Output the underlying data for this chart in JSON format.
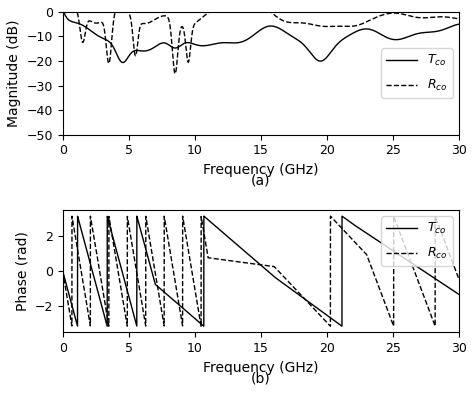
{
  "title_a": "(a)",
  "title_b": "(b)",
  "xlabel": "Frequency (GHz)",
  "ylabel_a": "Magnitude (dB)",
  "ylabel_b": "Phase (rad)",
  "xlim": [
    0,
    30
  ],
  "ylim_a": [
    -50,
    0
  ],
  "ylim_b": [
    -3.5,
    3.5
  ],
  "yticks_a": [
    0,
    -10,
    -20,
    -30,
    -40,
    -50
  ],
  "yticks_b": [
    -2,
    0,
    2
  ],
  "xticks": [
    0,
    5,
    10,
    15,
    20,
    25,
    30
  ],
  "legend_Tco": "$T_{co}$",
  "legend_Rco": "$R_{co}$",
  "line_color": "black",
  "bg_color": "white",
  "fontsize": 10,
  "label_fontsize": 10
}
